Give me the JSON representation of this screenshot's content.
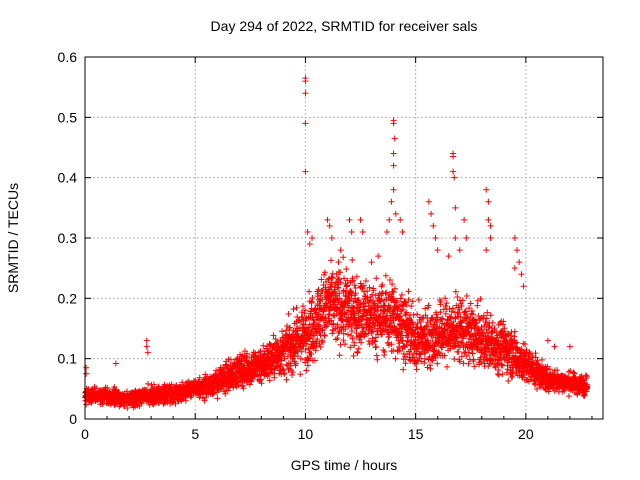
{
  "chart_data": {
    "type": "scatter",
    "title": "Day 294 of 2022, SRMTID for receiver sals",
    "xlabel": "GPS time / hours",
    "ylabel": "SRMTID / TECUs",
    "xlim": [
      0,
      23.5
    ],
    "ylim": [
      0,
      0.6
    ],
    "xticks": [
      0,
      5,
      10,
      15,
      20
    ],
    "yticks": [
      0,
      0.1,
      0.2,
      0.3,
      0.4,
      0.5,
      0.6
    ],
    "xtick_labels": [
      "0",
      "5",
      "10",
      "15",
      "20"
    ],
    "ytick_labels": [
      "0",
      "0.1",
      "0.2",
      "0.3",
      "0.4",
      "0.5",
      "0.6"
    ],
    "grid": true,
    "marker": "plus",
    "color": "#ff0000",
    "series": [
      {
        "name": "SRMTID",
        "profile_hours": [
          0,
          1,
          2,
          3,
          4,
          5,
          6,
          7,
          8,
          9,
          10,
          11,
          12,
          13,
          14,
          15,
          16,
          17,
          18,
          19,
          20,
          21,
          22,
          22.8
        ],
        "profile_median": [
          0.038,
          0.038,
          0.032,
          0.04,
          0.042,
          0.05,
          0.06,
          0.08,
          0.09,
          0.11,
          0.14,
          0.19,
          0.18,
          0.17,
          0.17,
          0.13,
          0.14,
          0.15,
          0.13,
          0.12,
          0.09,
          0.065,
          0.06,
          0.055
        ],
        "profile_spread": [
          0.012,
          0.012,
          0.012,
          0.014,
          0.014,
          0.015,
          0.02,
          0.025,
          0.03,
          0.035,
          0.05,
          0.06,
          0.06,
          0.055,
          0.06,
          0.045,
          0.05,
          0.05,
          0.045,
          0.04,
          0.03,
          0.018,
          0.016,
          0.015
        ],
        "outliers": [
          {
            "x": 0.05,
            "y": 0.085
          },
          {
            "x": 0.05,
            "y": 0.075
          },
          {
            "x": 1.4,
            "y": 0.092
          },
          {
            "x": 2.8,
            "y": 0.13
          },
          {
            "x": 2.8,
            "y": 0.12
          },
          {
            "x": 2.85,
            "y": 0.11
          },
          {
            "x": 10.0,
            "y": 0.565
          },
          {
            "x": 10.0,
            "y": 0.56
          },
          {
            "x": 10.0,
            "y": 0.54
          },
          {
            "x": 10.0,
            "y": 0.49
          },
          {
            "x": 10.0,
            "y": 0.41
          },
          {
            "x": 10.1,
            "y": 0.31
          },
          {
            "x": 10.3,
            "y": 0.3
          },
          {
            "x": 10.2,
            "y": 0.29
          },
          {
            "x": 11.0,
            "y": 0.33
          },
          {
            "x": 11.1,
            "y": 0.32
          },
          {
            "x": 11.2,
            "y": 0.3
          },
          {
            "x": 11.5,
            "y": 0.26
          },
          {
            "x": 11.6,
            "y": 0.28
          },
          {
            "x": 12.0,
            "y": 0.33
          },
          {
            "x": 12.1,
            "y": 0.31
          },
          {
            "x": 12.5,
            "y": 0.33
          },
          {
            "x": 12.6,
            "y": 0.31
          },
          {
            "x": 13.0,
            "y": 0.26
          },
          {
            "x": 13.3,
            "y": 0.27
          },
          {
            "x": 13.8,
            "y": 0.33
          },
          {
            "x": 13.7,
            "y": 0.31
          },
          {
            "x": 13.9,
            "y": 0.36
          },
          {
            "x": 14.0,
            "y": 0.495
          },
          {
            "x": 14.0,
            "y": 0.49
          },
          {
            "x": 14.05,
            "y": 0.465
          },
          {
            "x": 14.0,
            "y": 0.44
          },
          {
            "x": 14.0,
            "y": 0.42
          },
          {
            "x": 14.0,
            "y": 0.38
          },
          {
            "x": 14.1,
            "y": 0.34
          },
          {
            "x": 14.3,
            "y": 0.33
          },
          {
            "x": 14.4,
            "y": 0.31
          },
          {
            "x": 15.6,
            "y": 0.36
          },
          {
            "x": 15.7,
            "y": 0.34
          },
          {
            "x": 15.8,
            "y": 0.32
          },
          {
            "x": 15.9,
            "y": 0.3
          },
          {
            "x": 16.0,
            "y": 0.28
          },
          {
            "x": 16.5,
            "y": 0.27
          },
          {
            "x": 16.7,
            "y": 0.44
          },
          {
            "x": 16.7,
            "y": 0.435
          },
          {
            "x": 16.7,
            "y": 0.41
          },
          {
            "x": 16.75,
            "y": 0.4
          },
          {
            "x": 16.8,
            "y": 0.35
          },
          {
            "x": 16.8,
            "y": 0.3
          },
          {
            "x": 17.2,
            "y": 0.33
          },
          {
            "x": 17.3,
            "y": 0.3
          },
          {
            "x": 17.0,
            "y": 0.28
          },
          {
            "x": 18.2,
            "y": 0.38
          },
          {
            "x": 18.3,
            "y": 0.36
          },
          {
            "x": 18.3,
            "y": 0.33
          },
          {
            "x": 18.4,
            "y": 0.32
          },
          {
            "x": 18.4,
            "y": 0.3
          },
          {
            "x": 18.2,
            "y": 0.28
          },
          {
            "x": 19.5,
            "y": 0.3
          },
          {
            "x": 19.6,
            "y": 0.28
          },
          {
            "x": 19.7,
            "y": 0.26
          },
          {
            "x": 19.8,
            "y": 0.24
          },
          {
            "x": 19.9,
            "y": 0.22
          },
          {
            "x": 19.5,
            "y": 0.25
          },
          {
            "x": 21.0,
            "y": 0.13
          },
          {
            "x": 21.3,
            "y": 0.12
          },
          {
            "x": 22.0,
            "y": 0.12
          }
        ]
      }
    ]
  }
}
